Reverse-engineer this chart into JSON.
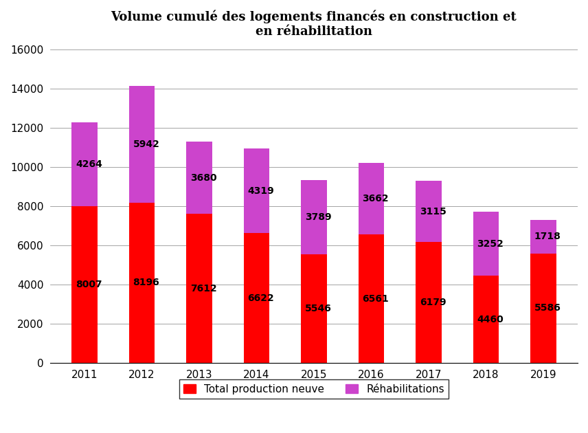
{
  "title": "Volume cumulé des logements financés en construction et\nen réhabilitation",
  "years": [
    "2011",
    "2012",
    "2013",
    "2014",
    "2015",
    "2016",
    "2017",
    "2018",
    "2019"
  ],
  "production_neuve": [
    8007,
    8196,
    7612,
    6622,
    5546,
    6561,
    6179,
    4460,
    5586
  ],
  "rehabilitations": [
    4264,
    5942,
    3680,
    4319,
    3789,
    3662,
    3115,
    3252,
    1718
  ],
  "color_production": "#FF0000",
  "color_rehab": "#CC44CC",
  "ylim": [
    0,
    16000
  ],
  "yticks": [
    0,
    2000,
    4000,
    6000,
    8000,
    10000,
    12000,
    14000,
    16000
  ],
  "legend_label_production": "Total production neuve",
  "legend_label_rehab": "Réhabilitations",
  "title_fontsize": 13,
  "tick_fontsize": 11,
  "label_fontsize": 10,
  "background_color": "#FFFFFF",
  "bar_width": 0.45
}
